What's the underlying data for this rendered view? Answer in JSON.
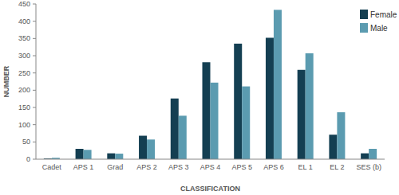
{
  "chart_data": {
    "type": "bar",
    "x_label": "CLASSIFICATION",
    "y_label": "NUMBER",
    "categories": [
      "Cadet",
      "APS 1",
      "Grad",
      "APS 2",
      "APS 3",
      "APS 4",
      "APS 5",
      "APS 6",
      "EL 1",
      "EL 2",
      "SES (b)"
    ],
    "series": [
      {
        "name": "Female",
        "color": "#143f52",
        "values": [
          2,
          30,
          17,
          68,
          176,
          281,
          335,
          352,
          259,
          71,
          17
        ]
      },
      {
        "name": "Male",
        "color": "#5b9bb0",
        "values": [
          4,
          27,
          16,
          57,
          126,
          222,
          211,
          433,
          307,
          136,
          30
        ]
      }
    ],
    "ylim": [
      0,
      450
    ],
    "yticks": [
      0,
      50,
      100,
      150,
      200,
      250,
      300,
      350,
      400,
      450
    ],
    "grid": false,
    "legend": "top-right"
  }
}
